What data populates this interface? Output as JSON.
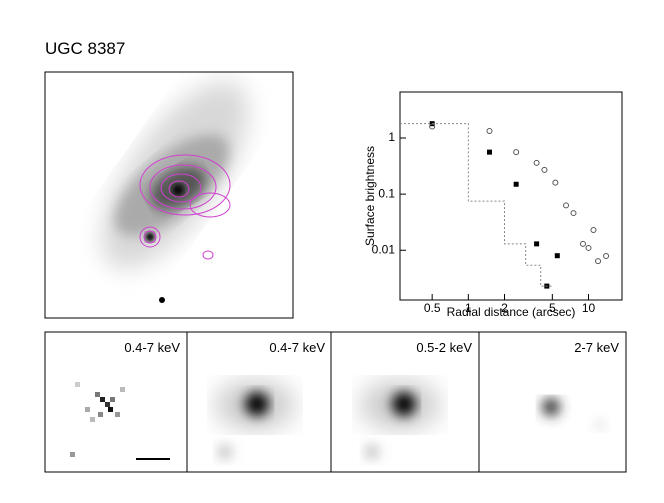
{
  "title": "UGC 8387",
  "panels": [
    "0.4-7 keV",
    "0.4-7 keV",
    "0.5-2 keV",
    "2-7 keV"
  ],
  "chart_data": {
    "type": "scatter",
    "xlabel": "Radial distance (arcsec)",
    "ylabel": "Surface brightness",
    "xscale": "log",
    "yscale": "log",
    "xlim": [
      0.27,
      19
    ],
    "ylim": [
      0.0013,
      6.6
    ],
    "xticks": [
      0.5,
      1,
      2,
      5,
      10
    ],
    "yticks": [
      1,
      0.1,
      0.01
    ],
    "series": [
      {
        "marker": "square",
        "color": "#000000",
        "x": [
          0.5,
          1.5,
          2.5,
          3.7,
          4.5,
          5.5
        ],
        "values": [
          1.8,
          0.56,
          0.15,
          0.013,
          0.0023,
          0.008
        ]
      },
      {
        "marker": "circle",
        "color": "#555555",
        "x": [
          0.5,
          1.5,
          2.5,
          3.7,
          4.3,
          5.3,
          6.5,
          7.5,
          9,
          10,
          11,
          12,
          14
        ],
        "values": [
          1.6,
          1.33,
          0.56,
          0.36,
          0.27,
          0.16,
          0.063,
          0.046,
          0.013,
          0.011,
          0.023,
          0.0064,
          0.0079
        ]
      },
      {
        "marker": "dotted-step",
        "color": "#888888",
        "x": [
          0.27,
          1,
          1,
          2,
          2,
          3,
          3,
          4,
          4,
          5
        ],
        "values": [
          1.8,
          1.8,
          0.075,
          0.075,
          0.013,
          0.013,
          0.0054,
          0.0054,
          0.0023,
          0.0023
        ]
      }
    ]
  }
}
